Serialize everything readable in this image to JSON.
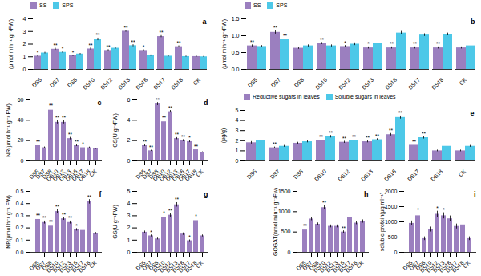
{
  "chart_data": [
    {
      "type": "bar",
      "annotation": "a",
      "ylabel": "(μmol min⁻¹ g⁻¹FW)",
      "categories": [
        "DS5",
        "DS7",
        "DS8",
        "DS10",
        "DS12",
        "DS13",
        "DS16",
        "DS17",
        "DS18",
        "CK"
      ],
      "series": [
        {
          "name": "SS",
          "color": "#9B7FBF",
          "values": [
            1.05,
            1.6,
            1.08,
            1.62,
            1.5,
            3.02,
            1.5,
            2.6,
            1.8,
            1.02
          ],
          "errors": [
            0.05,
            0.08,
            0.05,
            0.08,
            0.07,
            0.07,
            0.06,
            0.08,
            0.07,
            0.04
          ],
          "stars": [
            "*",
            "**",
            "*",
            "**",
            "**",
            "**",
            "*",
            "**",
            "**",
            null
          ]
        },
        {
          "name": "SPS",
          "color": "#4DC8E8",
          "values": [
            1.3,
            1.35,
            1.22,
            2.38,
            1.68,
            1.88,
            1.1,
            1.05,
            1.02,
            1.0
          ],
          "errors": [
            0.06,
            0.06,
            0.05,
            0.1,
            0.07,
            0.08,
            0.05,
            0.05,
            0.04,
            0.04
          ],
          "stars": [
            null,
            "*",
            null,
            "**",
            null,
            "**",
            null,
            null,
            null,
            null
          ]
        }
      ],
      "ylim": [
        0,
        4
      ],
      "yticks": [
        0,
        1,
        2,
        3,
        4
      ],
      "legend": "upper left",
      "grid": false
    },
    {
      "type": "bar",
      "annotation": "b",
      "ylabel": "(μmol min⁻¹ g⁻¹FW)",
      "categories": [
        "DS5",
        "DS7",
        "DS8",
        "DS10",
        "DS12",
        "DS13",
        "DS16",
        "DS17",
        "DS18",
        "CK"
      ],
      "series": [
        {
          "name": "SS",
          "color": "#9B7FBF",
          "values": [
            0.7,
            1.1,
            0.63,
            0.77,
            0.68,
            0.64,
            0.64,
            0.64,
            0.64,
            0.64
          ],
          "errors": [
            0.03,
            0.05,
            0.03,
            0.03,
            0.03,
            0.03,
            0.03,
            0.03,
            0.03,
            0.03
          ],
          "stars": [
            "**",
            "**",
            null,
            "**",
            "*",
            "*",
            "**",
            "**",
            "**",
            null
          ]
        },
        {
          "name": "SPS",
          "color": "#4DC8E8",
          "values": [
            0.68,
            0.88,
            0.7,
            0.7,
            0.75,
            0.77,
            1.08,
            1.02,
            1.04,
            0.7
          ],
          "errors": [
            0.03,
            0.04,
            0.03,
            0.03,
            0.04,
            0.04,
            0.05,
            0.04,
            0.04,
            0.03
          ],
          "stars": [
            null,
            "**",
            null,
            null,
            null,
            null,
            null,
            null,
            null,
            null
          ]
        }
      ],
      "ylim": [
        0,
        1.5
      ],
      "yticks": [
        {
          "value": 0,
          "label": "0.0"
        },
        0.5,
        {
          "value": 1,
          "label": "1.0"
        },
        1.5
      ],
      "legend": "upper left",
      "grid": false
    },
    {
      "type": "bar",
      "annotation": "c",
      "ylabel": "NR(μmol h⁻¹ g⁻¹ FW)",
      "categories": [
        "DS5",
        "DS7",
        "DS8",
        "DS10",
        "DS12",
        "DS13",
        "DS16",
        "DS17",
        "DS18",
        "CK"
      ],
      "color": "#9B7FBF",
      "values": [
        15,
        13,
        50,
        38,
        38,
        22,
        15,
        13,
        13,
        12
      ],
      "errors": [
        1.0,
        0.8,
        2.0,
        1.5,
        1.5,
        1.2,
        0.8,
        0.7,
        0.7,
        0.6
      ],
      "stars": [
        "**",
        null,
        "**",
        "**",
        "**",
        "**",
        "**",
        "*",
        null,
        null
      ],
      "ylim": [
        0,
        60
      ],
      "yticks": [
        0,
        20,
        40,
        60
      ],
      "grid": false
    },
    {
      "type": "bar",
      "annotation": "d",
      "ylabel": "GS(U g⁻¹FW)",
      "categories": [
        "DS5",
        "DS7",
        "DS8",
        "DS10",
        "DS12",
        "DS13",
        "DS16",
        "DS17",
        "DS18",
        "CK"
      ],
      "color": "#9B7FBF",
      "values": [
        1.5,
        1.0,
        5.6,
        3.85,
        4.85,
        2.2,
        2.0,
        1.9,
        1.1,
        0.85
      ],
      "errors": [
        0.08,
        0.06,
        0.15,
        0.12,
        0.12,
        0.1,
        0.1,
        0.09,
        0.07,
        0.05
      ],
      "stars": [
        "**",
        "**",
        "**",
        "**",
        "**",
        "**",
        "**",
        "*",
        "**",
        null
      ],
      "ylim": [
        0,
        6
      ],
      "yticks": [
        0,
        2,
        4,
        6
      ],
      "grid": false
    },
    {
      "type": "bar",
      "annotation": "e",
      "ylabel": "(μg/g)",
      "categories": [
        "DS5",
        "DS7",
        "DS8",
        "DS10",
        "DS12",
        "DS13",
        "DS16",
        "DS17",
        "DS18",
        "CK"
      ],
      "series": [
        {
          "name": "Reductive sugars in leaves",
          "color": "#9B7FBF",
          "values": [
            1.8,
            1.3,
            1.75,
            2.0,
            1.85,
            1.9,
            2.6,
            1.55,
            1.0,
            1.0
          ],
          "errors": [
            0.12,
            0.08,
            0.1,
            0.1,
            0.1,
            0.1,
            0.12,
            0.1,
            0.08,
            0.08
          ],
          "stars": [
            null,
            "**",
            null,
            "**",
            "**",
            "**",
            "**",
            "**",
            null,
            null
          ]
        },
        {
          "name": "Soluble sugars in leaves",
          "color": "#4DC8E8",
          "values": [
            2.0,
            1.45,
            1.9,
            2.4,
            2.0,
            2.1,
            4.3,
            2.3,
            1.45,
            1.45
          ],
          "errors": [
            0.12,
            0.09,
            0.1,
            0.12,
            0.1,
            0.1,
            0.15,
            0.12,
            0.09,
            0.09
          ],
          "stars": [
            null,
            null,
            null,
            "**",
            "**",
            "**",
            "**",
            "**",
            null,
            null
          ]
        }
      ],
      "ylim": [
        0,
        5
      ],
      "yticks": [
        0,
        1,
        2,
        3,
        4,
        5
      ],
      "legend": "upper left",
      "grid": false
    },
    {
      "type": "bar",
      "annotation": "f",
      "ylabel": "NR(μmol h⁻¹ g⁻¹ FW)",
      "categories": [
        "DS5",
        "DS7",
        "DS8",
        "DS10",
        "DS12",
        "DS13",
        "DS16",
        "DS17",
        "DS18",
        "CK"
      ],
      "color": "#9B7FBF",
      "values": [
        0.27,
        0.245,
        0.215,
        0.335,
        0.275,
        0.245,
        0.185,
        0.18,
        0.415,
        0.155
      ],
      "errors": [
        0.012,
        0.012,
        0.01,
        0.015,
        0.012,
        0.012,
        0.01,
        0.01,
        0.018,
        0.008
      ],
      "stars": [
        "**",
        "**",
        "**",
        "**",
        "**",
        "**",
        "*",
        null,
        "**",
        null
      ],
      "ylim": [
        0,
        0.5
      ],
      "yticks": [
        {
          "value": 0,
          "label": "0.0"
        },
        0.1,
        0.2,
        0.3,
        0.4,
        0.5
      ],
      "grid": false
    },
    {
      "type": "bar",
      "annotation": "g",
      "ylabel": "GS(U g⁻¹FW)",
      "categories": [
        "DS5",
        "DS7",
        "DS8",
        "DS10",
        "DS12",
        "DS13",
        "DS16",
        "DS17",
        "DS18",
        "CK"
      ],
      "color": "#9B7FBF",
      "values": [
        1.65,
        1.35,
        1.1,
        2.85,
        3.05,
        3.9,
        1.5,
        0.95,
        2.6,
        1.35
      ],
      "errors": [
        0.1,
        0.08,
        0.07,
        0.15,
        0.15,
        0.18,
        0.1,
        0.07,
        0.14,
        0.08
      ],
      "stars": [
        null,
        "*",
        null,
        "*",
        "**",
        "**",
        null,
        "*",
        "*",
        null
      ],
      "ylim": [
        0,
        5
      ],
      "yticks": [
        0,
        1,
        2,
        3,
        4,
        5
      ],
      "grid": false
    },
    {
      "type": "bar",
      "annotation": "h",
      "ylabel": "GOGAT(nmol min⁻¹ g⁻¹Fw)",
      "categories": [
        "DS5",
        "DS7",
        "DS8",
        "DS10",
        "DS12",
        "DS13",
        "DS16",
        "DS17",
        "DS18",
        "CK"
      ],
      "color": "#9B7FBF",
      "values": [
        550,
        820,
        690,
        1100,
        640,
        640,
        500,
        850,
        720,
        760
      ],
      "errors": [
        30,
        40,
        35,
        50,
        35,
        35,
        30,
        45,
        38,
        40
      ],
      "stars": [
        "**",
        null,
        null,
        "**",
        null,
        null,
        "**",
        null,
        null,
        null
      ],
      "ylim": [
        0,
        1500
      ],
      "yticks": [
        0,
        500,
        1000,
        1500
      ],
      "grid": false
    },
    {
      "type": "bar",
      "annotation": "i",
      "ylabel": "soluble protein(μg ml⁻¹)",
      "categories": [
        "DS5",
        "DS7",
        "DS8",
        "DS10",
        "DS12",
        "DS13",
        "DS16",
        "DS17",
        "DS18",
        "CK"
      ],
      "color": "#9B7FBF",
      "values": [
        950,
        1200,
        450,
        750,
        1250,
        1200,
        1100,
        850,
        900,
        450
      ],
      "errors": [
        80,
        100,
        60,
        80,
        100,
        100,
        95,
        80,
        85,
        60
      ],
      "stars": [
        null,
        "*",
        null,
        null,
        "*",
        "*",
        null,
        null,
        null,
        null
      ],
      "ylim": [
        0,
        2000
      ],
      "yticks": [
        0,
        500,
        1000,
        1500,
        2000
      ],
      "grid": false
    }
  ]
}
